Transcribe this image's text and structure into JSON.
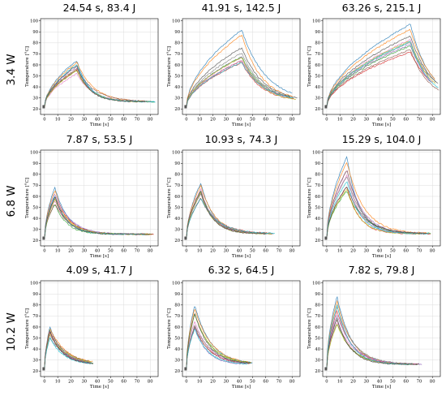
{
  "figure": {
    "row_labels": [
      "3.4 W",
      "6.8 W",
      "10.2 W"
    ]
  },
  "series_colors": [
    "#1f77b4",
    "#ff7f0e",
    "#2ca02c",
    "#d62728",
    "#9467bd",
    "#8c564b",
    "#e377c2",
    "#7f7f7f",
    "#bcbd22",
    "#17becf",
    "#4a4a4a"
  ],
  "chart_data": [
    {
      "type": "line",
      "row": 0,
      "col": 0,
      "title": "24.54 s, 83.4 J",
      "xlabel": "Time [s]",
      "ylabel": "Temperature [°C]",
      "xlim": [
        -3,
        86
      ],
      "ylim": [
        15,
        102
      ],
      "xticks": [
        0,
        10,
        20,
        30,
        40,
        50,
        60,
        70,
        80
      ],
      "yticks": [
        20,
        30,
        40,
        50,
        60,
        70,
        80,
        90,
        100
      ],
      "curves": {
        "start_temp": 22,
        "peak_time": 24.5,
        "peak_min": 52,
        "peak_max": 64,
        "ambient": 26.5,
        "end_time": 84,
        "count": 11
      }
    },
    {
      "type": "line",
      "row": 0,
      "col": 1,
      "title": "41.91 s, 142.5 J",
      "xlabel": "Time [s]",
      "ylabel": "Temperature [°C]",
      "xlim": [
        -3,
        86
      ],
      "ylim": [
        15,
        102
      ],
      "xticks": [
        0,
        10,
        20,
        30,
        40,
        50,
        60,
        70,
        80
      ],
      "yticks": [
        20,
        30,
        40,
        50,
        60,
        70,
        80,
        90,
        100
      ],
      "curves": {
        "start_temp": 22,
        "peak_time": 41.9,
        "peak_min": 60,
        "peak_max": 92,
        "ambient": 26.5,
        "end_time": 84,
        "count": 11
      }
    },
    {
      "type": "line",
      "row": 0,
      "col": 2,
      "title": "63.26 s, 215.1 J",
      "xlabel": "Time [s]",
      "ylabel": "Temperature [°C]",
      "xlim": [
        -3,
        86
      ],
      "ylim": [
        15,
        102
      ],
      "xticks": [
        0,
        10,
        20,
        30,
        40,
        50,
        60,
        70,
        80
      ],
      "yticks": [
        20,
        30,
        40,
        50,
        60,
        70,
        80,
        90,
        100
      ],
      "curves": {
        "start_temp": 22,
        "peak_time": 63.3,
        "peak_min": 66,
        "peak_max": 97,
        "ambient": 26.5,
        "end_time": 85,
        "count": 11
      }
    },
    {
      "type": "line",
      "row": 1,
      "col": 0,
      "title": "7.87 s, 53.5 J",
      "xlabel": "Time [s]",
      "ylabel": "Temperature [°C]",
      "xlim": [
        -3,
        86
      ],
      "ylim": [
        15,
        102
      ],
      "xticks": [
        0,
        10,
        20,
        30,
        40,
        50,
        60,
        70,
        80
      ],
      "yticks": [
        20,
        30,
        40,
        50,
        60,
        70,
        80,
        90,
        100
      ],
      "curves": {
        "start_temp": 22,
        "peak_time": 7.9,
        "peak_min": 52,
        "peak_max": 68,
        "ambient": 25.5,
        "end_time": 84,
        "count": 11
      }
    },
    {
      "type": "line",
      "row": 1,
      "col": 1,
      "title": "10.93 s, 74.3 J",
      "xlabel": "Time [s]",
      "ylabel": "Temperature [°C]",
      "xlim": [
        -3,
        86
      ],
      "ylim": [
        15,
        102
      ],
      "xticks": [
        0,
        10,
        20,
        30,
        40,
        50,
        60,
        70,
        80
      ],
      "yticks": [
        20,
        30,
        40,
        50,
        60,
        70,
        80,
        90,
        100
      ],
      "curves": {
        "start_temp": 22,
        "peak_time": 10.9,
        "peak_min": 58,
        "peak_max": 72,
        "ambient": 26,
        "end_time": 67,
        "count": 11
      }
    },
    {
      "type": "line",
      "row": 1,
      "col": 2,
      "title": "15.29 s, 104.0 J",
      "xlabel": "Time [s]",
      "ylabel": "Temperature [°C]",
      "xlim": [
        -3,
        86
      ],
      "ylim": [
        15,
        102
      ],
      "xticks": [
        0,
        10,
        20,
        30,
        40,
        50,
        60,
        70,
        80
      ],
      "yticks": [
        20,
        30,
        40,
        50,
        60,
        70,
        80,
        90,
        100
      ],
      "curves": {
        "start_temp": 22,
        "peak_time": 15.3,
        "peak_min": 64,
        "peak_max": 96,
        "ambient": 26,
        "end_time": 79,
        "count": 11
      }
    },
    {
      "type": "line",
      "row": 2,
      "col": 0,
      "title": "4.09 s, 41.7 J",
      "xlabel": "Time [s]",
      "ylabel": "Temperature [°C]",
      "xlim": [
        -3,
        86
      ],
      "ylim": [
        15,
        102
      ],
      "xticks": [
        0,
        10,
        20,
        30,
        40,
        50,
        60,
        70,
        80
      ],
      "yticks": [
        20,
        30,
        40,
        50,
        60,
        70,
        80,
        90,
        100
      ],
      "curves": {
        "start_temp": 22,
        "peak_time": 4.1,
        "peak_min": 50,
        "peak_max": 60,
        "ambient": 26,
        "end_time": 37,
        "count": 11
      }
    },
    {
      "type": "line",
      "row": 2,
      "col": 1,
      "title": "6.32 s, 64.5 J",
      "xlabel": "Time [s]",
      "ylabel": "Temperature [°C]",
      "xlim": [
        -3,
        86
      ],
      "ylim": [
        15,
        102
      ],
      "xticks": [
        0,
        10,
        20,
        30,
        40,
        50,
        60,
        70,
        80
      ],
      "yticks": [
        20,
        30,
        40,
        50,
        60,
        70,
        80,
        90,
        100
      ],
      "curves": {
        "start_temp": 22,
        "peak_time": 6.3,
        "peak_min": 58,
        "peak_max": 80,
        "ambient": 26,
        "end_time": 50,
        "count": 11
      }
    },
    {
      "type": "line",
      "row": 2,
      "col": 2,
      "title": "7.82 s, 79.8 J",
      "xlabel": "Time [s]",
      "ylabel": "Temperature [°C]",
      "xlim": [
        -3,
        86
      ],
      "ylim": [
        15,
        102
      ],
      "xticks": [
        0,
        10,
        20,
        30,
        40,
        50,
        60,
        70,
        80
      ],
      "yticks": [
        20,
        30,
        40,
        50,
        60,
        70,
        80,
        90,
        100
      ],
      "curves": {
        "start_temp": 22,
        "peak_time": 7.8,
        "peak_min": 62,
        "peak_max": 88,
        "ambient": 26,
        "end_time": 73,
        "count": 11
      }
    }
  ]
}
